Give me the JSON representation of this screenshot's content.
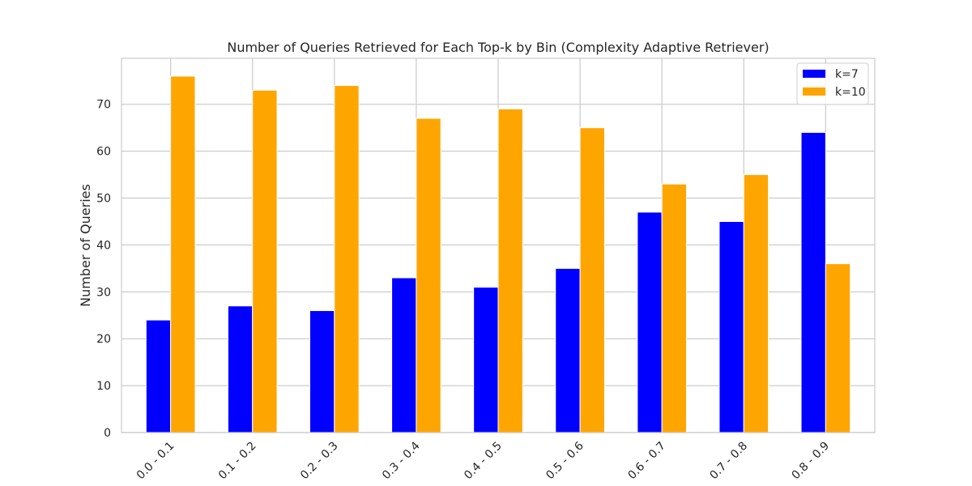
{
  "chart_data": {
    "type": "bar",
    "title": "Number of Queries Retrieved for Each Top-k by Bin (Complexity Adaptive Retriever)",
    "xlabel": "",
    "ylabel": "Number of Queries",
    "categories": [
      "0.0 - 0.1",
      "0.1 - 0.2",
      "0.2 - 0.3",
      "0.3 - 0.4",
      "0.4 - 0.5",
      "0.5 - 0.6",
      "0.6 - 0.7",
      "0.7 - 0.8",
      "0.8 - 0.9"
    ],
    "series": [
      {
        "name": "k=7",
        "color": "#0000ff",
        "values": [
          24,
          27,
          26,
          33,
          31,
          35,
          47,
          45,
          64
        ]
      },
      {
        "name": "k=10",
        "color": "#ffa500",
        "values": [
          76,
          73,
          74,
          67,
          69,
          65,
          53,
          55,
          36
        ]
      }
    ],
    "ylim": [
      0,
      79.8
    ],
    "yticks": [
      0,
      10,
      20,
      30,
      40,
      50,
      60,
      70
    ],
    "grid": true,
    "legend_position": "top-right"
  }
}
